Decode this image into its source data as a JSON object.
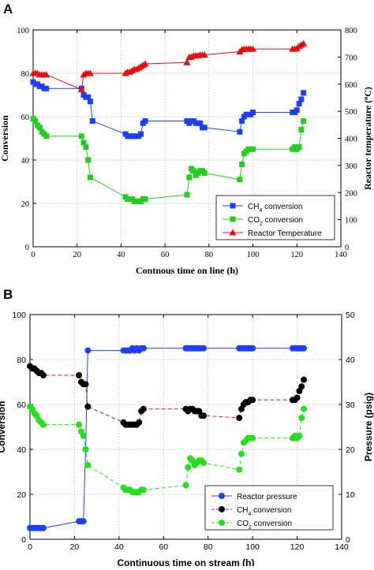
{
  "chart_data": [
    {
      "panel_label": "A",
      "type": "scatter",
      "title": "",
      "xlabel": "Contnous time on line (h)",
      "ylabel": "Conversion",
      "y2label_parts": {
        "main": "Reactor temperature (",
        "sup": "o",
        "unit": "C)"
      },
      "xlim": [
        0,
        140
      ],
      "ylim": [
        0,
        100
      ],
      "y2lim": [
        0,
        800
      ],
      "xticks": [
        "0",
        "20",
        "40",
        "60",
        "80",
        "100",
        "120",
        "140"
      ],
      "yticks": [
        "0",
        "20",
        "40",
        "60",
        "80",
        "100"
      ],
      "y2ticks": [
        "0",
        "100",
        "200",
        "300",
        "400",
        "500",
        "600",
        "700",
        "800"
      ],
      "grid": "dotted",
      "legend_position": "bottom-right",
      "series": [
        {
          "name": "CH4 conversion",
          "name_parts": [
            "CH",
            "4",
            " conversion"
          ],
          "color": "#1f3fff",
          "marker": "square",
          "axis": "left",
          "x": [
            0,
            1,
            2,
            3,
            4,
            5,
            6,
            22,
            23,
            24,
            25,
            26,
            27,
            42,
            43,
            44,
            45,
            46,
            47,
            48,
            49,
            50,
            51,
            70,
            71,
            72,
            73,
            74,
            75,
            76,
            77,
            78,
            94,
            95,
            96,
            97,
            98,
            99,
            100,
            118,
            119,
            120,
            121,
            122,
            123
          ],
          "y": [
            76,
            75,
            75,
            74,
            74,
            73,
            73,
            73,
            70,
            69,
            69,
            67,
            58,
            52,
            51,
            51,
            51,
            51,
            51,
            51,
            52,
            57,
            58,
            58,
            57,
            58,
            58,
            57,
            57,
            57,
            55,
            55,
            53,
            58,
            60,
            61,
            61,
            61,
            62,
            62,
            62,
            63,
            66,
            68,
            71
          ]
        },
        {
          "name": "CO2 conversion",
          "name_parts": [
            "CO",
            "2",
            " conversion"
          ],
          "color": "#22d01c",
          "marker": "square",
          "axis": "left",
          "x": [
            0,
            1,
            2,
            3,
            4,
            5,
            6,
            22,
            23,
            24,
            25,
            26,
            42,
            43,
            44,
            45,
            46,
            47,
            48,
            49,
            50,
            51,
            70,
            71,
            72,
            73,
            74,
            75,
            76,
            77,
            78,
            94,
            95,
            96,
            97,
            98,
            99,
            100,
            118,
            119,
            120,
            121,
            122,
            123
          ],
          "y": [
            59,
            58,
            56,
            55,
            53,
            52,
            51,
            51,
            48,
            46,
            40,
            32,
            23,
            22,
            22,
            22,
            21,
            21,
            21,
            21,
            22,
            22,
            24,
            32,
            36,
            35,
            33,
            34,
            35,
            35,
            34,
            31,
            38,
            43,
            44,
            45,
            45,
            45,
            45,
            46,
            45,
            46,
            54,
            58
          ]
        },
        {
          "name": "Reactor Temperature",
          "color": "#e41010",
          "marker": "triangle",
          "axis": "right",
          "x": [
            0,
            1,
            2,
            3,
            4,
            5,
            6,
            22,
            23,
            24,
            25,
            26,
            42,
            43,
            44,
            45,
            46,
            47,
            48,
            49,
            50,
            51,
            70,
            71,
            72,
            73,
            74,
            75,
            76,
            77,
            78,
            94,
            95,
            96,
            97,
            98,
            99,
            100,
            118,
            119,
            120,
            121,
            122,
            123
          ],
          "y": [
            640,
            640,
            640,
            635,
            635,
            635,
            635,
            580,
            635,
            640,
            640,
            640,
            640,
            645,
            645,
            650,
            655,
            655,
            660,
            665,
            670,
            675,
            680,
            700,
            700,
            705,
            705,
            705,
            708,
            708,
            708,
            720,
            728,
            730,
            730,
            730,
            730,
            730,
            730,
            730,
            732,
            740,
            745,
            750
          ]
        }
      ]
    },
    {
      "panel_label": "B",
      "type": "line",
      "title": "",
      "xlabel": "Continuous time on stream (h)",
      "ylabel": "Conversion",
      "y2label": "Pressure (psig)",
      "xlim": [
        0,
        140
      ],
      "ylim": [
        0,
        100
      ],
      "y2lim": [
        0,
        50
      ],
      "xticks": [
        "0",
        "20",
        "40",
        "60",
        "80",
        "100",
        "120",
        "140"
      ],
      "yticks": [
        "0",
        "20",
        "40",
        "60",
        "80",
        "100"
      ],
      "y2ticks": [
        "0",
        "10",
        "20",
        "30",
        "40",
        "50"
      ],
      "grid": "dotted",
      "legend_position": "bottom-right",
      "series": [
        {
          "name": "Reactor pressure",
          "color": "#1f3fff",
          "marker": "circle",
          "line": "solid",
          "axis": "right",
          "x": [
            0,
            1,
            2,
            3,
            4,
            5,
            6,
            22,
            23,
            24,
            25,
            26,
            42,
            43,
            44,
            45,
            46,
            47,
            48,
            49,
            50,
            51,
            70,
            71,
            72,
            73,
            74,
            75,
            76,
            77,
            78,
            94,
            95,
            96,
            97,
            98,
            99,
            100,
            118,
            119,
            120,
            121,
            122,
            123
          ],
          "y": [
            2.5,
            2.5,
            2.5,
            2.5,
            2.5,
            2.5,
            2.5,
            4,
            4,
            4,
            20,
            42,
            42,
            42,
            42,
            42,
            42.5,
            42,
            42.5,
            42,
            42.5,
            42.5,
            42.5,
            42.5,
            42.5,
            42.5,
            42.5,
            42.5,
            42.5,
            42.5,
            42.5,
            42.5,
            42.5,
            42.5,
            42.5,
            42.5,
            42.5,
            42.5,
            42.5,
            42.5,
            42.5,
            42.5,
            42.5,
            42.5
          ]
        },
        {
          "name": "CH4 conversion",
          "name_parts": [
            "CH",
            "4",
            " conversion"
          ],
          "color": "#000000",
          "marker": "circle",
          "line": "dashed-red",
          "line_color": "#e41010",
          "axis": "left",
          "x": [
            0,
            1,
            2,
            3,
            4,
            5,
            6,
            22,
            23,
            24,
            25,
            26,
            42,
            43,
            44,
            45,
            46,
            47,
            48,
            49,
            50,
            51,
            70,
            71,
            72,
            73,
            74,
            75,
            76,
            77,
            78,
            94,
            95,
            96,
            97,
            98,
            99,
            100,
            118,
            119,
            120,
            121,
            122,
            123
          ],
          "y": [
            77,
            76,
            76,
            75,
            74,
            74,
            73,
            73,
            70,
            69,
            69,
            59,
            52,
            51,
            51,
            51,
            51,
            51,
            51,
            52,
            57,
            58,
            58,
            57,
            58,
            58,
            57,
            57,
            57,
            55,
            55,
            54,
            58,
            60,
            61,
            61,
            62,
            62,
            62,
            62,
            63,
            66,
            68,
            71
          ]
        },
        {
          "name": "CO2 conversion",
          "name_parts": [
            "CO",
            "2",
            " conversion"
          ],
          "color": "#22e01c",
          "marker": "circle",
          "line": "dashed-green",
          "line_color": "#22e01c",
          "axis": "left",
          "x": [
            0,
            1,
            2,
            3,
            4,
            5,
            6,
            22,
            23,
            24,
            25,
            26,
            42,
            43,
            44,
            45,
            46,
            47,
            48,
            49,
            50,
            51,
            70,
            71,
            72,
            73,
            74,
            75,
            76,
            77,
            78,
            94,
            95,
            96,
            97,
            98,
            99,
            100,
            118,
            119,
            120,
            121,
            122,
            123
          ],
          "y": [
            59,
            58,
            56,
            55,
            53,
            52,
            51,
            51,
            48,
            46,
            40,
            33,
            23,
            22,
            22,
            22,
            21,
            21,
            21,
            21,
            22,
            22,
            24,
            32,
            36,
            35,
            33,
            34,
            35,
            35,
            34,
            31,
            38,
            43,
            44,
            45,
            45,
            45,
            45,
            46,
            45,
            46,
            54,
            58
          ]
        }
      ]
    }
  ]
}
